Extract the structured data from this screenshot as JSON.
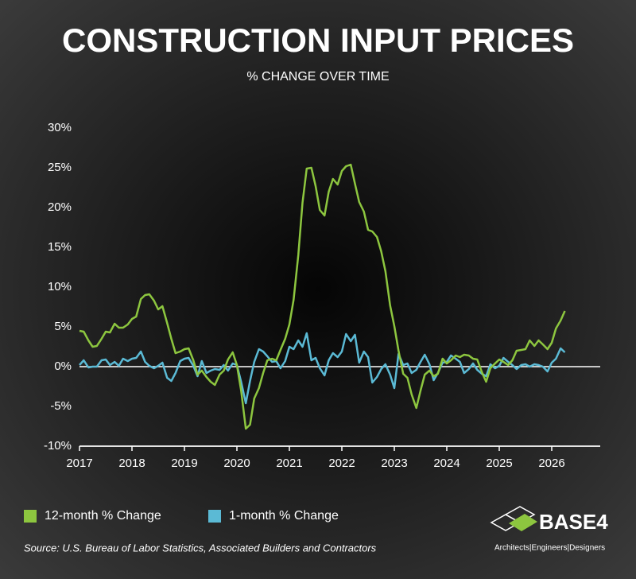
{
  "chart_data": {
    "type": "line",
    "title": "CONSTRUCTION INPUT PRICES",
    "subtitle": "% CHANGE OVER TIME",
    "source": "Source: U.S. Bureau of Labor Statistics, Associated Builders and Contractors",
    "logo": {
      "name": "BASE4",
      "tagline": "Architects|Engineers|Designers"
    },
    "x": [
      2017,
      2017.08,
      2017.17,
      2017.25,
      2017.33,
      2017.42,
      2017.5,
      2017.58,
      2017.67,
      2017.75,
      2017.83,
      2017.92,
      2018,
      2018.08,
      2018.17,
      2018.25,
      2018.33,
      2018.42,
      2018.5,
      2018.58,
      2018.67,
      2018.75,
      2018.83,
      2018.92,
      2019,
      2019.08,
      2019.17,
      2019.25,
      2019.33,
      2019.42,
      2019.5,
      2019.58,
      2019.67,
      2019.75,
      2019.83,
      2019.92,
      2020,
      2020.08,
      2020.17,
      2020.25,
      2020.33,
      2020.42,
      2020.5,
      2020.58,
      2020.67,
      2020.75,
      2020.83,
      2020.92,
      2021,
      2021.08,
      2021.17,
      2021.25,
      2021.33,
      2021.42,
      2021.5,
      2021.58,
      2021.67,
      2021.75,
      2021.83,
      2021.92,
      2022,
      2022.08,
      2022.17,
      2022.25,
      2022.33,
      2022.42,
      2022.5,
      2022.58,
      2022.67,
      2022.75,
      2022.83,
      2022.92,
      2023,
      2023.08,
      2023.17,
      2023.25,
      2023.33,
      2023.42,
      2023.5,
      2023.58,
      2023.67,
      2023.75,
      2023.83,
      2023.92,
      2024,
      2024.08,
      2024.17,
      2024.25,
      2024.33,
      2024.42,
      2024.5,
      2024.58,
      2024.67,
      2024.75,
      2024.83,
      2024.92,
      2025,
      2025.08,
      2025.17,
      2025.25,
      2025.33,
      2025.42,
      2025.5,
      2025.58,
      2025.67,
      2025.75,
      2025.83,
      2025.92,
      2026,
      2026.08,
      2026.17,
      2026.25
    ],
    "series": [
      {
        "name": "12-month % Change",
        "color": "#8dc63f",
        "values": [
          4.5,
          4.4,
          3.3,
          2.5,
          2.6,
          3.5,
          4.4,
          4.3,
          5.4,
          4.9,
          4.9,
          5.3,
          6.0,
          6.3,
          8.5,
          9.0,
          9.1,
          8.3,
          7.2,
          7.6,
          5.5,
          3.5,
          1.7,
          1.9,
          2.2,
          2.3,
          0.8,
          -1.0,
          -0.5,
          -1.3,
          -1.9,
          -2.3,
          -1.0,
          -0.5,
          0.9,
          1.8,
          0.2,
          -3.0,
          -7.8,
          -7.3,
          -4.0,
          -2.7,
          -0.8,
          0.8,
          1.0,
          0.8,
          2.1,
          3.5,
          5.3,
          8.4,
          14.0,
          20.6,
          24.9,
          25.0,
          22.7,
          19.7,
          19.0,
          22.0,
          23.6,
          22.9,
          24.6,
          25.2,
          25.4,
          23.0,
          20.7,
          19.5,
          17.2,
          17.0,
          16.3,
          14.5,
          12.0,
          7.7,
          5.1,
          2.0,
          -0.9,
          -1.4,
          -3.5,
          -5.2,
          -3.0,
          -1.0,
          -0.5,
          -1.2,
          -0.9,
          1.0,
          0.4,
          0.8,
          1.4,
          1.2,
          1.5,
          1.4,
          1.0,
          0.9,
          -0.7,
          -1.9,
          -0.2,
          0.4,
          0.9,
          0.6,
          0.2,
          0.8,
          2.0,
          2.1,
          2.2,
          3.3,
          2.6,
          3.3,
          2.8,
          2.2,
          3.0,
          4.8,
          5.8,
          7.0
        ]
      },
      {
        "name": "1-month % Change",
        "color": "#5bbad5",
        "values": [
          0.2,
          0.8,
          -0.1,
          0,
          0,
          0.8,
          0.9,
          0.2,
          0.6,
          0.1,
          1.0,
          0.7,
          1.0,
          1.1,
          1.9,
          0.6,
          0.1,
          -0.2,
          0.1,
          0.5,
          -1.4,
          -1.8,
          -0.8,
          0.7,
          1.0,
          1.1,
          0.1,
          -1.2,
          0.7,
          -0.8,
          -0.5,
          -0.3,
          -0.4,
          0.2,
          -0.5,
          0.4,
          0.2,
          -1.9,
          -4.6,
          -1.8,
          0.6,
          2.2,
          1.9,
          1.3,
          0.6,
          0.7,
          -0.2,
          0.7,
          2.5,
          2.2,
          3.3,
          2.5,
          4.2,
          0.8,
          1.1,
          -0.2,
          -1.1,
          0.8,
          1.7,
          1.2,
          1.9,
          4.1,
          3.2,
          4.0,
          0.5,
          1.9,
          1.2,
          -2.0,
          -1.3,
          -0.3,
          0.3,
          -1.0,
          -2.7,
          1.6,
          0.2,
          0.4,
          -0.8,
          -0.4,
          0.6,
          1.5,
          0.3,
          -1.7,
          -0.8,
          0.5,
          0.6,
          1.4,
          1.0,
          0.6,
          -0.8,
          -0.3,
          0.4,
          -0.4,
          -0.9,
          -1.2,
          0.3,
          -0.2,
          0.1,
          1.1,
          0.6,
          0.2,
          -0.3,
          0.2,
          0.3,
          0.0,
          0.3,
          0.2,
          0.0,
          -0.6,
          0.5,
          1.0,
          2.3,
          1.8
        ]
      }
    ],
    "xlim": [
      2017,
      2027
    ],
    "xticks": [
      2017,
      2018,
      2019,
      2020,
      2021,
      2022,
      2023,
      2024,
      2025,
      2026
    ],
    "ylim": [
      -10,
      30
    ],
    "yticks": [
      {
        "value": -10,
        "label": "-10%"
      },
      {
        "value": -5,
        "label": "-5%"
      },
      {
        "value": 0,
        "label": "0%"
      },
      {
        "value": 5,
        "label": "5%"
      },
      {
        "value": 10,
        "label": "10%"
      },
      {
        "value": 15,
        "label": "15%"
      },
      {
        "value": 20,
        "label": "20%"
      },
      {
        "value": 25,
        "label": "25%"
      },
      {
        "value": 30,
        "label": "30%"
      }
    ],
    "legend": "bottom-left"
  }
}
